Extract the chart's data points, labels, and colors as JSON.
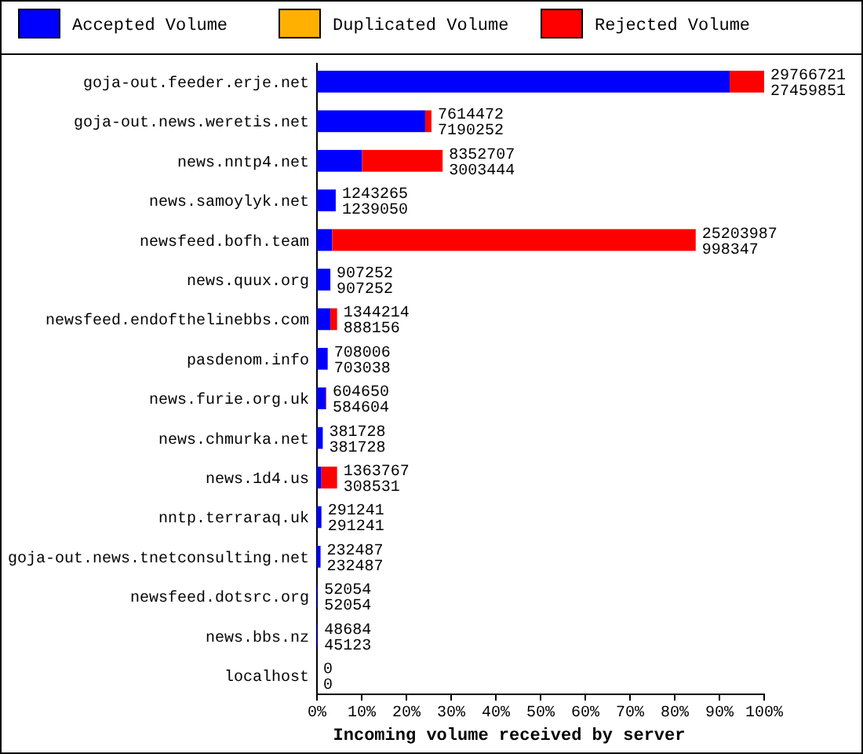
{
  "chart_data": {
    "type": "bar",
    "orientation": "horizontal",
    "stacked": true,
    "xlabel": "Incoming volume received by server",
    "categories": [
      "goja-out.feeder.erje.net",
      "goja-out.news.weretis.net",
      "news.nntp4.net",
      "news.samoylyk.net",
      "newsfeed.bofh.team",
      "news.quux.org",
      "newsfeed.endofthelinebbs.com",
      "pasdenom.info",
      "news.furie.org.uk",
      "news.chmurka.net",
      "news.1d4.us",
      "nntp.terraraq.uk",
      "goja-out.news.tnetconsulting.net",
      "newsfeed.dotsrc.org",
      "news.bbs.nz",
      "localhost"
    ],
    "series": [
      {
        "name": "Accepted Volume",
        "color": "#0000ff",
        "values": [
          92.3,
          24.2,
          10.1,
          4.2,
          3.4,
          3.0,
          3.0,
          2.4,
          2.0,
          1.3,
          1.0,
          1.0,
          0.8,
          0.2,
          0.2,
          0
        ]
      },
      {
        "name": "Duplicated Volume",
        "color": "#ffb000",
        "values": [
          0,
          0,
          0,
          0,
          0,
          0,
          0,
          0,
          0,
          0,
          0,
          0,
          0,
          0,
          0,
          0
        ]
      },
      {
        "name": "Rejected Volume",
        "color": "#ff0000",
        "values": [
          7.7,
          1.4,
          18.0,
          0,
          81.3,
          0,
          1.5,
          0,
          0.1,
          0,
          3.5,
          0,
          0,
          0,
          0,
          0
        ]
      }
    ],
    "annotations": [
      {
        "text": "29766721",
        "x": 100,
        "y": "goja-out.feeder.erje.net"
      },
      {
        "text": "27459851",
        "x": 100,
        "y": "goja-out.feeder.erje.net"
      },
      {
        "text": "7614472",
        "x": 25.6,
        "y": "goja-out.news.weretis.net"
      },
      {
        "text": "7190252",
        "x": 25.6,
        "y": "goja-out.news.weretis.net"
      },
      {
        "text": "8352707",
        "x": 28.1,
        "y": "news.nntp4.net"
      },
      {
        "text": "3003444",
        "x": 28.1,
        "y": "news.nntp4.net"
      },
      {
        "text": "1243265",
        "x": 4.2,
        "y": "news.samoylyk.net"
      },
      {
        "text": "1239050",
        "x": 4.2,
        "y": "news.samoylyk.net"
      },
      {
        "text": "25203987",
        "x": 84.7,
        "y": "newsfeed.bofh.team"
      },
      {
        "text": "998347",
        "x": 84.7,
        "y": "newsfeed.bofh.team"
      },
      {
        "text": "907252",
        "x": 3.0,
        "y": "news.quux.org"
      },
      {
        "text": "907252",
        "x": 3.0,
        "y": "news.quux.org"
      },
      {
        "text": "1344214",
        "x": 4.5,
        "y": "newsfeed.endofthelinebbs.com"
      },
      {
        "text": "888156",
        "x": 4.5,
        "y": "newsfeed.endofthelinebbs.com"
      },
      {
        "text": "708006",
        "x": 2.4,
        "y": "pasdenom.info"
      },
      {
        "text": "703038",
        "x": 2.4,
        "y": "pasdenom.info"
      },
      {
        "text": "604650",
        "x": 2.1,
        "y": "news.furie.org.uk"
      },
      {
        "text": "584604",
        "x": 2.1,
        "y": "news.furie.org.uk"
      },
      {
        "text": "381728",
        "x": 1.3,
        "y": "news.chmurka.net"
      },
      {
        "text": "381728",
        "x": 1.3,
        "y": "news.chmurka.net"
      },
      {
        "text": "1363767",
        "x": 4.5,
        "y": "news.1d4.us"
      },
      {
        "text": "308531",
        "x": 4.5,
        "y": "news.1d4.us"
      },
      {
        "text": "291241",
        "x": 1.0,
        "y": "nntp.terraraq.uk"
      },
      {
        "text": "291241",
        "x": 1.0,
        "y": "nntp.terraraq.uk"
      },
      {
        "text": "232487",
        "x": 0.8,
        "y": "goja-out.news.tnetconsulting.net"
      },
      {
        "text": "232487",
        "x": 0.8,
        "y": "goja-out.news.tnetconsulting.net"
      },
      {
        "text": "52054",
        "x": 0.2,
        "y": "newsfeed.dotsrc.org"
      },
      {
        "text": "52054",
        "x": 0.2,
        "y": "newsfeed.dotsrc.org"
      },
      {
        "text": "48684",
        "x": 0.2,
        "y": "news.bbs.nz"
      },
      {
        "text": "45123",
        "x": 0.2,
        "y": "news.bbs.nz"
      },
      {
        "text": "0",
        "x": 0,
        "y": "localhost"
      },
      {
        "text": "0",
        "x": 0,
        "y": "localhost"
      }
    ],
    "xlim": [
      0,
      100
    ],
    "xticks": [
      {
        "value": 0,
        "label": "0%"
      },
      {
        "value": 10,
        "label": "10%"
      },
      {
        "value": 20,
        "label": "20%"
      },
      {
        "value": 30,
        "label": "30%"
      },
      {
        "value": 40,
        "label": "40%"
      },
      {
        "value": 50,
        "label": "50%"
      },
      {
        "value": 60,
        "label": "60%"
      },
      {
        "value": 70,
        "label": "70%"
      },
      {
        "value": 80,
        "label": "80%"
      },
      {
        "value": 90,
        "label": "90%"
      },
      {
        "value": 100,
        "label": "100%"
      }
    ],
    "legend": "top",
    "grid": false
  }
}
